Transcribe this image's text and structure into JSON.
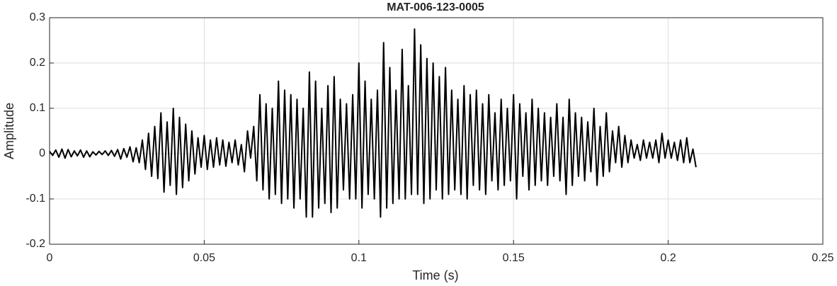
{
  "chart_data": {
    "type": "line",
    "title": "MAT-006-123-0005",
    "x_label": "Time (s)",
    "y_label": "Amplitude",
    "xlim": [
      0,
      0.25
    ],
    "xticks": [
      0,
      0.05,
      0.1,
      0.15,
      0.2,
      0.25
    ],
    "ylim": [
      -0.2,
      0.3
    ],
    "yticks": [
      -0.2,
      -0.1,
      0,
      0.1,
      0.2,
      0.3
    ],
    "grid": true,
    "color": "#000000",
    "x": [
      0,
      0.001,
      0.002,
      0.003,
      0.004,
      0.005,
      0.006,
      0.007,
      0.008,
      0.009,
      0.01,
      0.011,
      0.012,
      0.013,
      0.014,
      0.015,
      0.016,
      0.017,
      0.018,
      0.019,
      0.02,
      0.021,
      0.022,
      0.023,
      0.024,
      0.025,
      0.026,
      0.027,
      0.028,
      0.029,
      0.03,
      0.031,
      0.032,
      0.033,
      0.034,
      0.035,
      0.036,
      0.037,
      0.038,
      0.039,
      0.04,
      0.041,
      0.042,
      0.043,
      0.044,
      0.045,
      0.046,
      0.047,
      0.048,
      0.049,
      0.05,
      0.051,
      0.052,
      0.053,
      0.054,
      0.055,
      0.056,
      0.057,
      0.058,
      0.059,
      0.06,
      0.061,
      0.062,
      0.063,
      0.064,
      0.065,
      0.066,
      0.067,
      0.068,
      0.069,
      0.07,
      0.071,
      0.072,
      0.073,
      0.074,
      0.075,
      0.076,
      0.077,
      0.078,
      0.079,
      0.08,
      0.081,
      0.082,
      0.083,
      0.084,
      0.085,
      0.086,
      0.087,
      0.088,
      0.089,
      0.09,
      0.091,
      0.092,
      0.093,
      0.094,
      0.095,
      0.096,
      0.097,
      0.098,
      0.099,
      0.1,
      0.101,
      0.102,
      0.103,
      0.104,
      0.105,
      0.106,
      0.107,
      0.108,
      0.109,
      0.11,
      0.111,
      0.112,
      0.113,
      0.114,
      0.115,
      0.116,
      0.117,
      0.118,
      0.119,
      0.12,
      0.121,
      0.122,
      0.123,
      0.124,
      0.125,
      0.126,
      0.127,
      0.128,
      0.129,
      0.13,
      0.131,
      0.132,
      0.133,
      0.134,
      0.135,
      0.136,
      0.137,
      0.138,
      0.139,
      0.14,
      0.141,
      0.142,
      0.143,
      0.144,
      0.145,
      0.146,
      0.147,
      0.148,
      0.149,
      0.15,
      0.151,
      0.152,
      0.153,
      0.154,
      0.155,
      0.156,
      0.157,
      0.158,
      0.159,
      0.16,
      0.161,
      0.162,
      0.163,
      0.164,
      0.165,
      0.166,
      0.167,
      0.168,
      0.169,
      0.17,
      0.171,
      0.172,
      0.173,
      0.174,
      0.175,
      0.176,
      0.177,
      0.178,
      0.179,
      0.18,
      0.181,
      0.182,
      0.183,
      0.184,
      0.185,
      0.186,
      0.187,
      0.188,
      0.189,
      0.19,
      0.191,
      0.192,
      0.193,
      0.194,
      0.195,
      0.196,
      0.197,
      0.198,
      0.199,
      0.2,
      0.201,
      0.202,
      0.203,
      0.204,
      0.205,
      0.206,
      0.207,
      0.208,
      0.209
    ],
    "values": [
      0.005,
      -0.004,
      0.008,
      -0.008,
      0.01,
      -0.01,
      0.009,
      -0.007,
      0.006,
      -0.005,
      0.008,
      -0.008,
      0.006,
      -0.007,
      0.004,
      -0.003,
      0.005,
      -0.002,
      0.006,
      -0.004,
      0.007,
      -0.006,
      0.009,
      -0.012,
      0.011,
      -0.008,
      0.015,
      -0.018,
      0.013,
      -0.02,
      0.03,
      -0.035,
      0.045,
      -0.05,
      0.06,
      -0.055,
      0.09,
      -0.085,
      0.07,
      -0.07,
      0.1,
      -0.09,
      0.08,
      -0.075,
      0.065,
      -0.06,
      0.05,
      -0.045,
      0.035,
      -0.03,
      0.04,
      -0.035,
      0.03,
      -0.03,
      0.035,
      -0.025,
      0.03,
      -0.028,
      0.025,
      -0.02,
      0.03,
      -0.025,
      0.02,
      -0.04,
      0.05,
      -0.01,
      0.06,
      -0.06,
      0.13,
      -0.08,
      0.11,
      -0.1,
      0.1,
      -0.09,
      0.16,
      -0.11,
      0.14,
      -0.1,
      0.13,
      -0.12,
      0.12,
      -0.1,
      0.1,
      -0.14,
      0.18,
      -0.14,
      0.16,
      -0.12,
      0.1,
      -0.11,
      0.15,
      -0.13,
      0.17,
      -0.12,
      0.12,
      -0.08,
      0.11,
      -0.1,
      0.13,
      -0.1,
      0.2,
      -0.12,
      0.16,
      -0.09,
      0.12,
      -0.1,
      0.14,
      -0.14,
      0.245,
      -0.12,
      0.19,
      -0.11,
      0.14,
      -0.1,
      0.23,
      -0.1,
      0.15,
      -0.09,
      0.275,
      -0.09,
      0.24,
      -0.11,
      0.21,
      -0.1,
      0.2,
      -0.08,
      0.17,
      -0.1,
      0.19,
      -0.09,
      0.14,
      -0.08,
      0.12,
      -0.09,
      0.15,
      -0.1,
      0.13,
      -0.07,
      0.14,
      -0.08,
      0.11,
      -0.09,
      0.13,
      -0.06,
      0.09,
      -0.08,
      0.12,
      -0.07,
      0.1,
      -0.06,
      0.13,
      -0.1,
      0.11,
      -0.05,
      0.09,
      -0.08,
      0.12,
      -0.07,
      0.1,
      -0.06,
      0.09,
      -0.07,
      0.08,
      -0.05,
      0.11,
      -0.06,
      0.08,
      -0.09,
      0.12,
      -0.07,
      0.09,
      -0.05,
      0.08,
      -0.06,
      0.07,
      -0.04,
      0.1,
      -0.07,
      0.06,
      -0.05,
      0.09,
      -0.04,
      0.05,
      -0.02,
      0.06,
      -0.03,
      0.04,
      -0.02,
      0.03,
      -0.01,
      0.02,
      -0.015,
      0.03,
      -0.01,
      0.025,
      -0.01,
      0.03,
      -0.02,
      0.045,
      -0.01,
      0.03,
      -0.01,
      0.025,
      -0.015,
      0.03,
      -0.02,
      0.035,
      -0.02,
      0.01,
      -0.03
    ]
  }
}
